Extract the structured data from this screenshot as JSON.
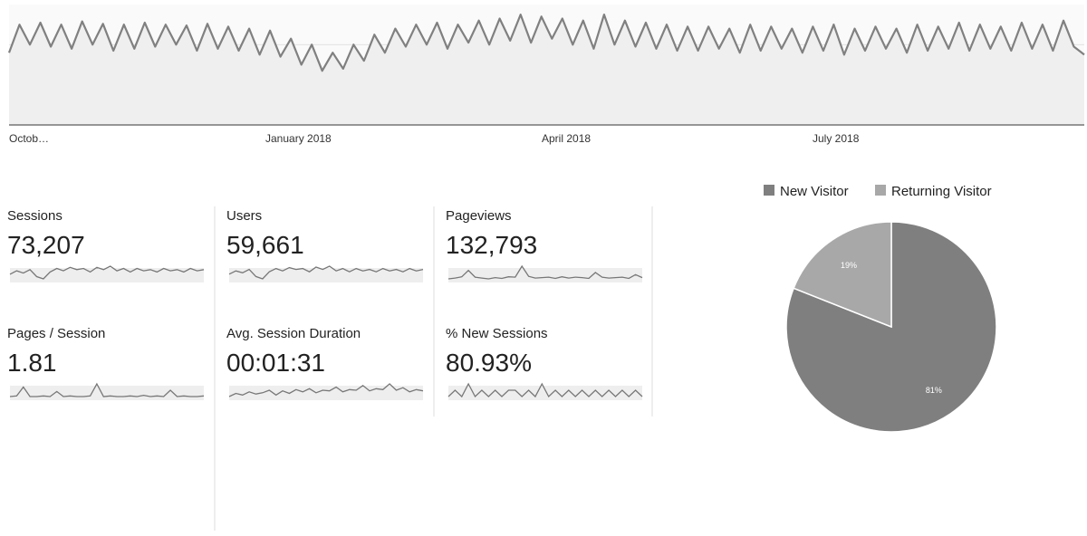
{
  "main_chart": {
    "type": "line",
    "xlabels": [
      "Octob…",
      "January 2018",
      "April 2018",
      "July 2018"
    ],
    "ylim": [
      0,
      300
    ],
    "yticks": [
      200
    ],
    "grid": true,
    "color": "#808080",
    "values": [
      180,
      250,
      200,
      255,
      195,
      250,
      190,
      258,
      200,
      252,
      185,
      250,
      190,
      255,
      195,
      250,
      200,
      248,
      185,
      252,
      190,
      245,
      185,
      240,
      175,
      235,
      170,
      215,
      150,
      200,
      135,
      180,
      140,
      200,
      160,
      225,
      180,
      240,
      195,
      250,
      200,
      255,
      190,
      250,
      205,
      260,
      200,
      265,
      210,
      275,
      205,
      270,
      215,
      265,
      200,
      260,
      190,
      275,
      200,
      260,
      195,
      255,
      190,
      250,
      185,
      245,
      185,
      245,
      190,
      240,
      180,
      250,
      185,
      245,
      190,
      240,
      180,
      245,
      185,
      250,
      175,
      240,
      185,
      245,
      190,
      240,
      180,
      250,
      185,
      245,
      190,
      255,
      185,
      250,
      190,
      245,
      185,
      255,
      190,
      250,
      185,
      260,
      195,
      175
    ]
  },
  "metrics": [
    {
      "label": "Sessions",
      "value": "73,207",
      "spark": [
        200,
        215,
        205,
        220,
        190,
        180,
        210,
        225,
        215,
        230,
        220,
        225,
        210,
        230,
        220,
        235,
        215,
        225,
        210,
        225,
        215,
        220,
        210,
        225,
        215,
        220,
        210,
        225,
        215,
        220
      ]
    },
    {
      "label": "Users",
      "value": "59,661",
      "spark": [
        198,
        212,
        204,
        218,
        188,
        178,
        208,
        222,
        212,
        226,
        218,
        222,
        208,
        228,
        218,
        232,
        212,
        222,
        208,
        222,
        212,
        218,
        208,
        222,
        212,
        218,
        208,
        222,
        212,
        218
      ]
    },
    {
      "label": "Pageviews",
      "value": "132,793",
      "spark": [
        40,
        42,
        45,
        60,
        44,
        42,
        40,
        43,
        41,
        45,
        44,
        70,
        46,
        42,
        43,
        44,
        41,
        45,
        42,
        44,
        43,
        41,
        55,
        44,
        42,
        43,
        44,
        41,
        50,
        43
      ]
    },
    {
      "label": "Pages / Session",
      "value": "1.81",
      "spark": [
        10,
        11,
        25,
        10,
        10,
        11,
        10,
        18,
        10,
        11,
        10,
        10,
        11,
        30,
        10,
        11,
        10,
        10,
        11,
        10,
        12,
        10,
        11,
        10,
        20,
        10,
        11,
        10,
        10,
        11
      ]
    },
    {
      "label": "Avg. Session Duration",
      "value": "00:01:31",
      "spark": [
        50,
        60,
        55,
        65,
        58,
        62,
        70,
        55,
        68,
        60,
        72,
        65,
        75,
        62,
        70,
        68,
        80,
        65,
        72,
        70,
        85,
        68,
        75,
        72,
        90,
        70,
        78,
        65,
        72,
        68
      ]
    },
    {
      "label": "% New Sessions",
      "value": "80.93%",
      "spark": [
        80,
        81,
        80,
        82,
        80,
        81,
        80,
        81,
        80,
        81,
        81,
        80,
        81,
        80,
        82,
        80,
        81,
        80,
        81,
        80,
        81,
        80,
        81,
        80,
        81,
        80,
        81,
        80,
        81,
        80
      ]
    }
  ],
  "pie": {
    "type": "pie",
    "series": [
      {
        "name": "New Visitor",
        "color": "#7f7f7f",
        "value": 81,
        "value_label": "81%"
      },
      {
        "name": "Returning Visitor",
        "color": "#a8a8a8",
        "value": 19,
        "value_label": "19%"
      }
    ]
  }
}
